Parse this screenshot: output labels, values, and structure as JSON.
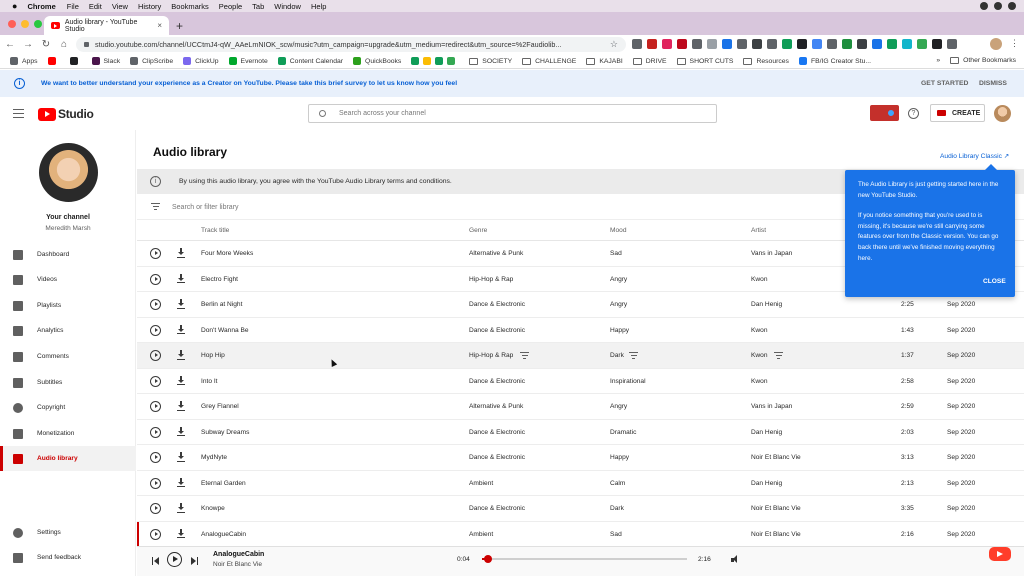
{
  "mac_menu": {
    "app": "Chrome",
    "items": [
      "File",
      "Edit",
      "View",
      "History",
      "Bookmarks",
      "People",
      "Tab",
      "Window",
      "Help"
    ]
  },
  "browser": {
    "tab_title": "Audio library - YouTube Studio",
    "url": "studio.youtube.com/channel/UCCtmJ4-qW_AAeLmNIOK_scw/music?utm_campaign=upgrade&utm_medium=redirect&utm_source=%2Faudiolib...",
    "bookmarks": [
      {
        "label": "Apps",
        "color": "#5f6368"
      },
      {
        "label": "",
        "color": "#ff0000"
      },
      {
        "label": "",
        "color": "#202124"
      },
      {
        "label": "Slack",
        "color": "#4a154b"
      },
      {
        "label": "ClipScribe",
        "color": "#5f6368"
      },
      {
        "label": "ClickUp",
        "color": "#7b68ee"
      },
      {
        "label": "Evernote",
        "color": "#00a82d"
      },
      {
        "label": "Content Calendar",
        "color": "#0f9d58"
      },
      {
        "label": "QuickBooks",
        "color": "#2ca01c"
      }
    ],
    "bookmark_folders": [
      "SOCIETY",
      "CHALLENGE",
      "KAJABI",
      "DRIVE",
      "SHORT CUTS",
      "Resources"
    ],
    "bookmark_last": "FB/IG Creator Stu...",
    "bookmark_more": "»",
    "other_bookmarks": "Other Bookmarks"
  },
  "banner": {
    "message": "We want to better understand your experience as a Creator on YouTube. Please take this brief survey to let us know how you feel",
    "get_started": "GET STARTED",
    "dismiss": "DISMISS"
  },
  "header": {
    "logo_text": "Studio",
    "search_placeholder": "Search across your channel",
    "create_label": "CREATE"
  },
  "sidebar": {
    "channel_label": "Your channel",
    "channel_name": "Meredith Marsh",
    "items": [
      {
        "label": "Dashboard",
        "icon": "dashboard-icon"
      },
      {
        "label": "Videos",
        "icon": "videos-icon"
      },
      {
        "label": "Playlists",
        "icon": "playlists-icon"
      },
      {
        "label": "Analytics",
        "icon": "analytics-icon"
      },
      {
        "label": "Comments",
        "icon": "comments-icon"
      },
      {
        "label": "Subtitles",
        "icon": "subtitles-icon"
      },
      {
        "label": "Copyright",
        "icon": "copyright-icon"
      },
      {
        "label": "Monetization",
        "icon": "monetization-icon"
      },
      {
        "label": "Audio library",
        "icon": "audio-library-icon",
        "active": true
      }
    ],
    "settings": "Settings",
    "feedback": "Send feedback"
  },
  "main": {
    "title": "Audio library",
    "classic_link": "Audio Library Classic",
    "terms": "By using this audio library, you agree with the YouTube Audio Library terms and conditions.",
    "filter_placeholder": "Search or filter library",
    "columns": [
      "Track title",
      "Genre",
      "Mood",
      "Artist"
    ],
    "tracks": [
      {
        "title": "Four More Weeks",
        "genre": "Alternative & Punk",
        "mood": "Sad",
        "artist": "Vans in Japan",
        "duration": "",
        "date": ""
      },
      {
        "title": "Electro Fight",
        "genre": "Hip-Hop & Rap",
        "mood": "Angry",
        "artist": "Kwon",
        "duration": "",
        "date": ""
      },
      {
        "title": "Berlin at Night",
        "genre": "Dance & Electronic",
        "mood": "Angry",
        "artist": "Dan Henig",
        "duration": "2:25",
        "date": "Sep 2020"
      },
      {
        "title": "Don't Wanna Be",
        "genre": "Dance & Electronic",
        "mood": "Happy",
        "artist": "Kwon",
        "duration": "1:43",
        "date": "Sep 2020"
      },
      {
        "title": "Hop Hip",
        "genre": "Hip-Hop & Rap",
        "mood": "Dark",
        "artist": "Kwon",
        "duration": "1:37",
        "date": "Sep 2020",
        "hover": true
      },
      {
        "title": "Into It",
        "genre": "Dance & Electronic",
        "mood": "Inspirational",
        "artist": "Kwon",
        "duration": "2:58",
        "date": "Sep 2020"
      },
      {
        "title": "Grey Flannel",
        "genre": "Alternative & Punk",
        "mood": "Angry",
        "artist": "Vans in Japan",
        "duration": "2:59",
        "date": "Sep 2020"
      },
      {
        "title": "Subway Dreams",
        "genre": "Dance & Electronic",
        "mood": "Dramatic",
        "artist": "Dan Henig",
        "duration": "2:03",
        "date": "Sep 2020"
      },
      {
        "title": "MydNyte",
        "genre": "Dance & Electronic",
        "mood": "Happy",
        "artist": "Noir Et Blanc Vie",
        "duration": "3:13",
        "date": "Sep 2020"
      },
      {
        "title": "Eternal Garden",
        "genre": "Ambient",
        "mood": "Calm",
        "artist": "Dan Henig",
        "duration": "2:13",
        "date": "Sep 2020"
      },
      {
        "title": "Knowpe",
        "genre": "Dance & Electronic",
        "mood": "Dark",
        "artist": "Noir Et Blanc Vie",
        "duration": "3:35",
        "date": "Sep 2020"
      },
      {
        "title": "AnalogueCabin",
        "genre": "Ambient",
        "mood": "Sad",
        "artist": "Noir Et Blanc Vie",
        "duration": "2:16",
        "date": "Sep 2020"
      }
    ]
  },
  "tooltip": {
    "p1": "The Audio Library is just getting started here in the new YouTube Studio.",
    "p2": "If you notice something that you're used to is missing, it's because we're still carrying some features over from the Classic version. You can go back there until we've finished moving everything here.",
    "close": "CLOSE"
  },
  "player": {
    "title": "AnalogueCabin",
    "artist": "Noir Et Blanc Vie",
    "current_time": "0:04",
    "total_time": "2:16",
    "progress": 0.03
  },
  "colors": {
    "accent": "#cc0000",
    "link": "#065fd4",
    "tooltip": "#1a73e8"
  }
}
